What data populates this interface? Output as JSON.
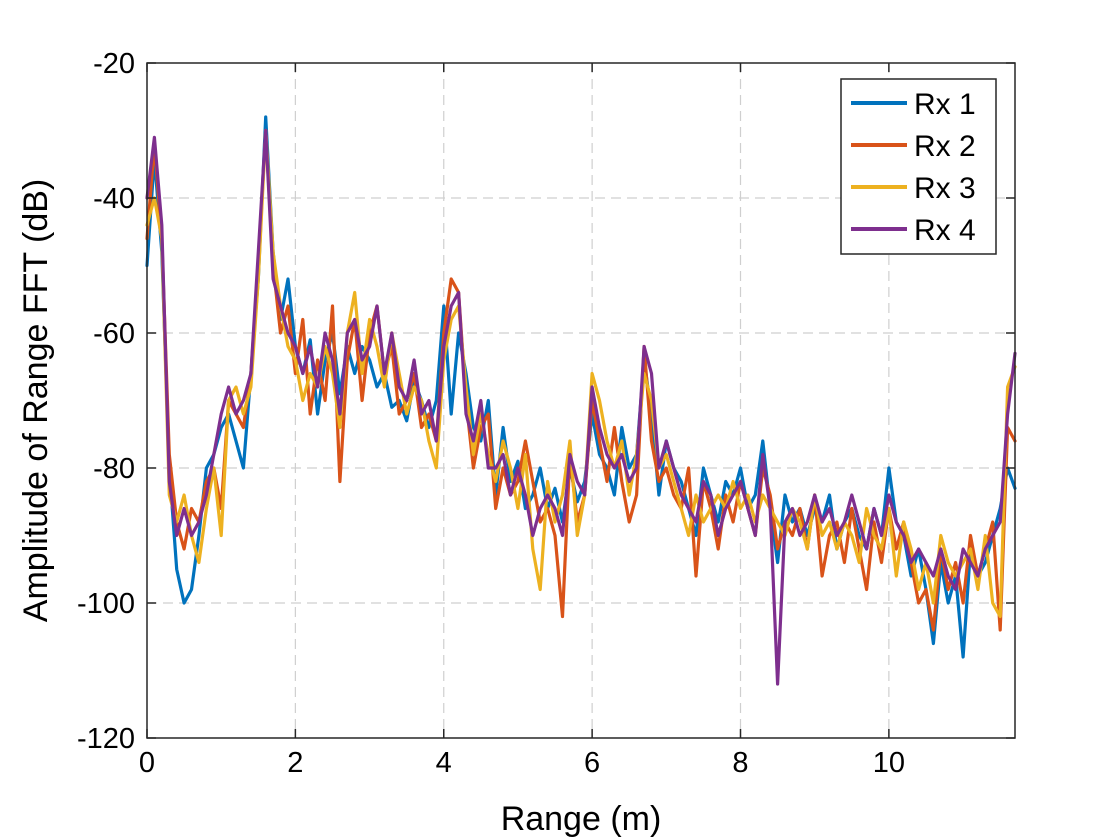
{
  "chart_data": {
    "type": "line",
    "title": "",
    "xlabel": "Range (m)",
    "ylabel": "Amplitude of Range FFT (dB)",
    "xlim": [
      0,
      11.7
    ],
    "ylim": [
      -120,
      -20
    ],
    "xticks": [
      0,
      2,
      4,
      6,
      8,
      10
    ],
    "yticks": [
      -20,
      -40,
      -60,
      -80,
      -100,
      -120
    ],
    "grid": true,
    "legend_position": "top-right",
    "x": [
      0.0,
      0.1,
      0.2,
      0.3,
      0.4,
      0.5,
      0.6,
      0.7,
      0.8,
      0.9,
      1.0,
      1.1,
      1.2,
      1.3,
      1.4,
      1.5,
      1.6,
      1.7,
      1.8,
      1.9,
      2.0,
      2.1,
      2.2,
      2.3,
      2.4,
      2.5,
      2.6,
      2.7,
      2.8,
      2.9,
      3.0,
      3.1,
      3.2,
      3.3,
      3.4,
      3.5,
      3.6,
      3.7,
      3.8,
      3.9,
      4.0,
      4.1,
      4.2,
      4.3,
      4.4,
      4.5,
      4.6,
      4.7,
      4.8,
      4.9,
      5.0,
      5.1,
      5.2,
      5.3,
      5.4,
      5.5,
      5.6,
      5.7,
      5.8,
      5.9,
      6.0,
      6.1,
      6.2,
      6.3,
      6.4,
      6.5,
      6.6,
      6.7,
      6.8,
      6.9,
      7.0,
      7.1,
      7.2,
      7.3,
      7.4,
      7.5,
      7.6,
      7.7,
      7.8,
      7.9,
      8.0,
      8.1,
      8.2,
      8.3,
      8.4,
      8.5,
      8.6,
      8.7,
      8.8,
      8.9,
      9.0,
      9.1,
      9.2,
      9.3,
      9.4,
      9.5,
      9.6,
      9.7,
      9.8,
      9.9,
      10.0,
      10.1,
      10.2,
      10.3,
      10.4,
      10.5,
      10.6,
      10.7,
      10.8,
      10.9,
      11.0,
      11.1,
      11.2,
      11.3,
      11.4,
      11.5,
      11.6,
      11.7
    ],
    "series": [
      {
        "name": "Rx 1",
        "color": "#0072BD",
        "values": [
          -50,
          -34,
          -48,
          -80,
          -95,
          -100,
          -98,
          -90,
          -80,
          -78,
          -74,
          -72,
          -76,
          -80,
          -66,
          -52,
          -28,
          -48,
          -58,
          -52,
          -62,
          -66,
          -61,
          -72,
          -64,
          -60,
          -69,
          -62,
          -66,
          -62,
          -64,
          -68,
          -66,
          -71,
          -70,
          -73,
          -67,
          -70,
          -74,
          -70,
          -56,
          -72,
          -60,
          -66,
          -74,
          -76,
          -70,
          -84,
          -74,
          -82,
          -79,
          -86,
          -84,
          -80,
          -86,
          -83,
          -88,
          -80,
          -85,
          -82,
          -72,
          -78,
          -80,
          -84,
          -74,
          -80,
          -78,
          -64,
          -72,
          -84,
          -76,
          -80,
          -82,
          -86,
          -90,
          -80,
          -84,
          -88,
          -82,
          -84,
          -80,
          -86,
          -84,
          -76,
          -86,
          -94,
          -84,
          -88,
          -86,
          -90,
          -86,
          -88,
          -84,
          -92,
          -88,
          -86,
          -90,
          -92,
          -86,
          -90,
          -80,
          -88,
          -90,
          -96,
          -92,
          -98,
          -106,
          -94,
          -100,
          -96,
          -108,
          -92,
          -96,
          -94,
          -90,
          -86,
          -80,
          -83
        ]
      },
      {
        "name": "Rx 2",
        "color": "#D95319",
        "values": [
          -46,
          -32,
          -46,
          -78,
          -88,
          -92,
          -86,
          -88,
          -82,
          -80,
          -86,
          -70,
          -72,
          -74,
          -66,
          -50,
          -30,
          -50,
          -60,
          -56,
          -66,
          -58,
          -72,
          -64,
          -70,
          -56,
          -82,
          -64,
          -58,
          -70,
          -60,
          -56,
          -66,
          -62,
          -72,
          -70,
          -66,
          -74,
          -72,
          -76,
          -60,
          -52,
          -54,
          -70,
          -80,
          -74,
          -72,
          -86,
          -80,
          -84,
          -82,
          -76,
          -82,
          -88,
          -86,
          -90,
          -102,
          -78,
          -88,
          -84,
          -70,
          -76,
          -82,
          -74,
          -82,
          -88,
          -84,
          -62,
          -76,
          -82,
          -80,
          -84,
          -86,
          -80,
          -96,
          -82,
          -86,
          -92,
          -84,
          -88,
          -82,
          -86,
          -90,
          -80,
          -84,
          -92,
          -88,
          -90,
          -86,
          -92,
          -84,
          -96,
          -90,
          -88,
          -94,
          -86,
          -92,
          -98,
          -88,
          -94,
          -86,
          -92,
          -88,
          -94,
          -100,
          -98,
          -104,
          -92,
          -98,
          -94,
          -100,
          -90,
          -96,
          -92,
          -88,
          -104,
          -74,
          -76
        ]
      },
      {
        "name": "Rx 3",
        "color": "#EDB120",
        "values": [
          -44,
          -40,
          -46,
          -84,
          -88,
          -84,
          -90,
          -94,
          -86,
          -80,
          -90,
          -70,
          -68,
          -72,
          -68,
          -52,
          -30,
          -48,
          -56,
          -62,
          -64,
          -70,
          -66,
          -68,
          -62,
          -66,
          -74,
          -60,
          -54,
          -66,
          -58,
          -62,
          -68,
          -60,
          -66,
          -72,
          -68,
          -70,
          -76,
          -80,
          -64,
          -58,
          -56,
          -68,
          -78,
          -72,
          -78,
          -82,
          -76,
          -80,
          -86,
          -78,
          -92,
          -98,
          -82,
          -88,
          -84,
          -76,
          -90,
          -84,
          -66,
          -70,
          -76,
          -80,
          -76,
          -84,
          -78,
          -66,
          -70,
          -80,
          -78,
          -82,
          -86,
          -90,
          -84,
          -88,
          -86,
          -84,
          -86,
          -82,
          -86,
          -84,
          -88,
          -84,
          -86,
          -88,
          -90,
          -86,
          -88,
          -92,
          -84,
          -90,
          -88,
          -92,
          -88,
          -90,
          -94,
          -86,
          -90,
          -92,
          -86,
          -96,
          -88,
          -92,
          -98,
          -94,
          -100,
          -90,
          -94,
          -96,
          -94,
          -92,
          -98,
          -90,
          -100,
          -102,
          -68,
          -65
        ]
      },
      {
        "name": "Rx 4",
        "color": "#7E2F8E",
        "values": [
          -40,
          -31,
          -44,
          -82,
          -90,
          -86,
          -90,
          -88,
          -84,
          -78,
          -72,
          -68,
          -72,
          -70,
          -66,
          -48,
          -30,
          -52,
          -56,
          -60,
          -62,
          -66,
          -62,
          -68,
          -60,
          -64,
          -72,
          -60,
          -58,
          -64,
          -62,
          -56,
          -66,
          -60,
          -68,
          -70,
          -64,
          -72,
          -70,
          -76,
          -62,
          -56,
          -54,
          -72,
          -76,
          -70,
          -80,
          -80,
          -78,
          -84,
          -80,
          -84,
          -90,
          -86,
          -84,
          -86,
          -90,
          -78,
          -82,
          -84,
          -68,
          -74,
          -78,
          -80,
          -78,
          -82,
          -80,
          -62,
          -66,
          -80,
          -76,
          -80,
          -84,
          -86,
          -88,
          -82,
          -84,
          -90,
          -86,
          -84,
          -82,
          -86,
          -90,
          -78,
          -86,
          -112,
          -88,
          -86,
          -90,
          -88,
          -84,
          -88,
          -86,
          -90,
          -88,
          -84,
          -88,
          -92,
          -86,
          -90,
          -84,
          -88,
          -90,
          -94,
          -92,
          -94,
          -96,
          -92,
          -96,
          -98,
          -92,
          -94,
          -96,
          -92,
          -90,
          -88,
          -72,
          -63
        ]
      }
    ]
  }
}
